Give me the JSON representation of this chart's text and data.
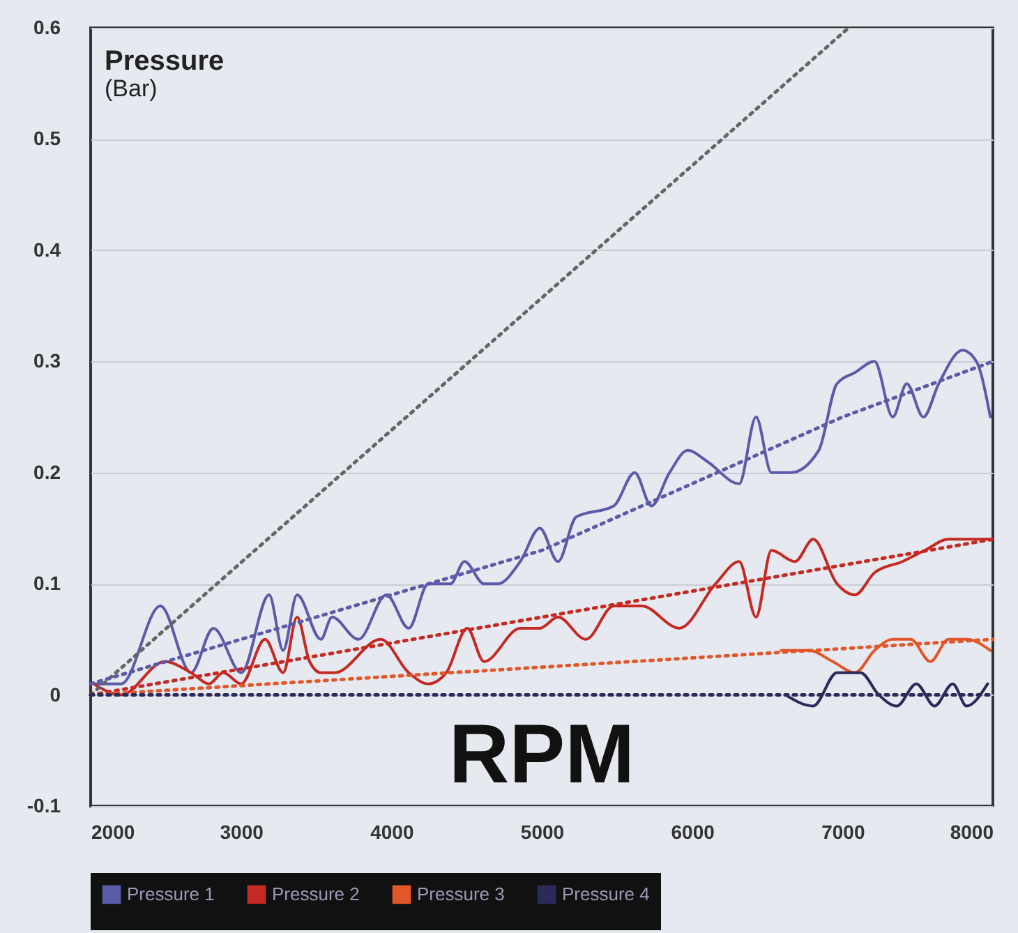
{
  "chart_data": {
    "type": "line",
    "ylabel": "Pressure\n(Bar)",
    "xlabel": "RPM",
    "xlim": [
      2000,
      8000
    ],
    "xticks": [
      2000,
      3000,
      4000,
      5000,
      6000,
      7000,
      8000
    ],
    "ylim": [
      -0.1,
      0.6
    ],
    "yticks": [
      -0.1,
      0,
      0.1,
      0.2,
      0.3,
      0.4,
      0.5,
      0.6
    ],
    "grid": "y",
    "legend": "bottom",
    "line_style": "solid",
    "series": [
      {
        "name": "Pressure 1",
        "color": "#5b5ba8",
        "x": [
          2019,
          2204,
          2464,
          2668,
          2816,
          3002,
          3187,
          3280,
          3373,
          3531,
          3605,
          3781,
          3967,
          4115,
          4245,
          4393,
          4486,
          4616,
          4709,
          4857,
          4987,
          5108,
          5228,
          5479,
          5618,
          5729,
          5850,
          5971,
          6100,
          6313,
          6425,
          6527,
          6657,
          6842,
          6963,
          7083,
          7213,
          7334,
          7427,
          7538,
          7640,
          7798,
          7890,
          7983
        ],
        "values": [
          0.01,
          0.01,
          0.08,
          0.02,
          0.06,
          0.02,
          0.09,
          0.04,
          0.09,
          0.05,
          0.07,
          0.05,
          0.09,
          0.06,
          0.1,
          0.1,
          0.12,
          0.1,
          0.1,
          0.12,
          0.15,
          0.12,
          0.16,
          0.17,
          0.2,
          0.17,
          0.2,
          0.22,
          0.21,
          0.19,
          0.25,
          0.2,
          0.2,
          0.22,
          0.28,
          0.29,
          0.3,
          0.25,
          0.28,
          0.25,
          0.28,
          0.31,
          0.3,
          0.25
        ]
      },
      {
        "name": "Pressure 2",
        "color": "#c42a23",
        "x": [
          2019,
          2204,
          2492,
          2668,
          2788,
          2881,
          3002,
          3160,
          3280,
          3373,
          3456,
          3531,
          3623,
          3929,
          4115,
          4245,
          4365,
          4504,
          4616,
          4857,
          4987,
          5108,
          5293,
          5479,
          5664,
          5915,
          6156,
          6313,
          6425,
          6527,
          6684,
          6805,
          6963,
          7083,
          7213,
          7399,
          7547,
          7705,
          7862,
          7983
        ],
        "values": [
          0.01,
          0.0,
          0.03,
          0.02,
          0.01,
          0.02,
          0.01,
          0.05,
          0.02,
          0.07,
          0.03,
          0.02,
          0.02,
          0.05,
          0.02,
          0.01,
          0.02,
          0.06,
          0.03,
          0.06,
          0.06,
          0.07,
          0.05,
          0.08,
          0.08,
          0.06,
          0.1,
          0.12,
          0.07,
          0.13,
          0.12,
          0.14,
          0.1,
          0.09,
          0.11,
          0.12,
          0.13,
          0.14,
          0.14,
          0.14
        ]
      },
      {
        "name": "Pressure 3",
        "color": "#e2572a",
        "x": [
          6592,
          6777,
          6935,
          7083,
          7213,
          7334,
          7454,
          7584,
          7705,
          7825,
          7983
        ],
        "values": [
          0.04,
          0.04,
          0.03,
          0.02,
          0.04,
          0.05,
          0.05,
          0.03,
          0.05,
          0.05,
          0.04
        ]
      },
      {
        "name": "Pressure 4",
        "color": "#2b2a5a",
        "x": [
          6620,
          6805,
          6963,
          7120,
          7241,
          7361,
          7491,
          7612,
          7733,
          7825,
          7965
        ],
        "values": [
          0.0,
          -0.01,
          0.02,
          0.02,
          0.0,
          -0.01,
          0.01,
          -0.01,
          0.01,
          -0.01,
          0.01
        ]
      },
      {
        "type": "line",
        "line_style": "dotted",
        "color": "#666666",
        "x": [
          2000,
          7040
        ],
        "values": [
          0,
          0.6
        ]
      },
      {
        "type": "line",
        "line_style": "dotted",
        "color": "#5b5ba8",
        "x": [
          2000,
          3000,
          4000,
          5000,
          6000,
          7000,
          8000
        ],
        "values": [
          0.01,
          0.05,
          0.09,
          0.13,
          0.19,
          0.25,
          0.3
        ]
      },
      {
        "type": "line",
        "line_style": "dotted",
        "color": "#c42a23",
        "x": [
          2000,
          8000
        ],
        "values": [
          0,
          0.14
        ]
      },
      {
        "type": "line",
        "line_style": "dotted",
        "color": "#e2572a",
        "x": [
          2000,
          8000
        ],
        "values": [
          0,
          0.05
        ]
      },
      {
        "type": "line",
        "line_style": "dotted",
        "color": "#2b2a5a",
        "x": [
          2000,
          8000
        ],
        "values": [
          0,
          0
        ]
      }
    ]
  }
}
